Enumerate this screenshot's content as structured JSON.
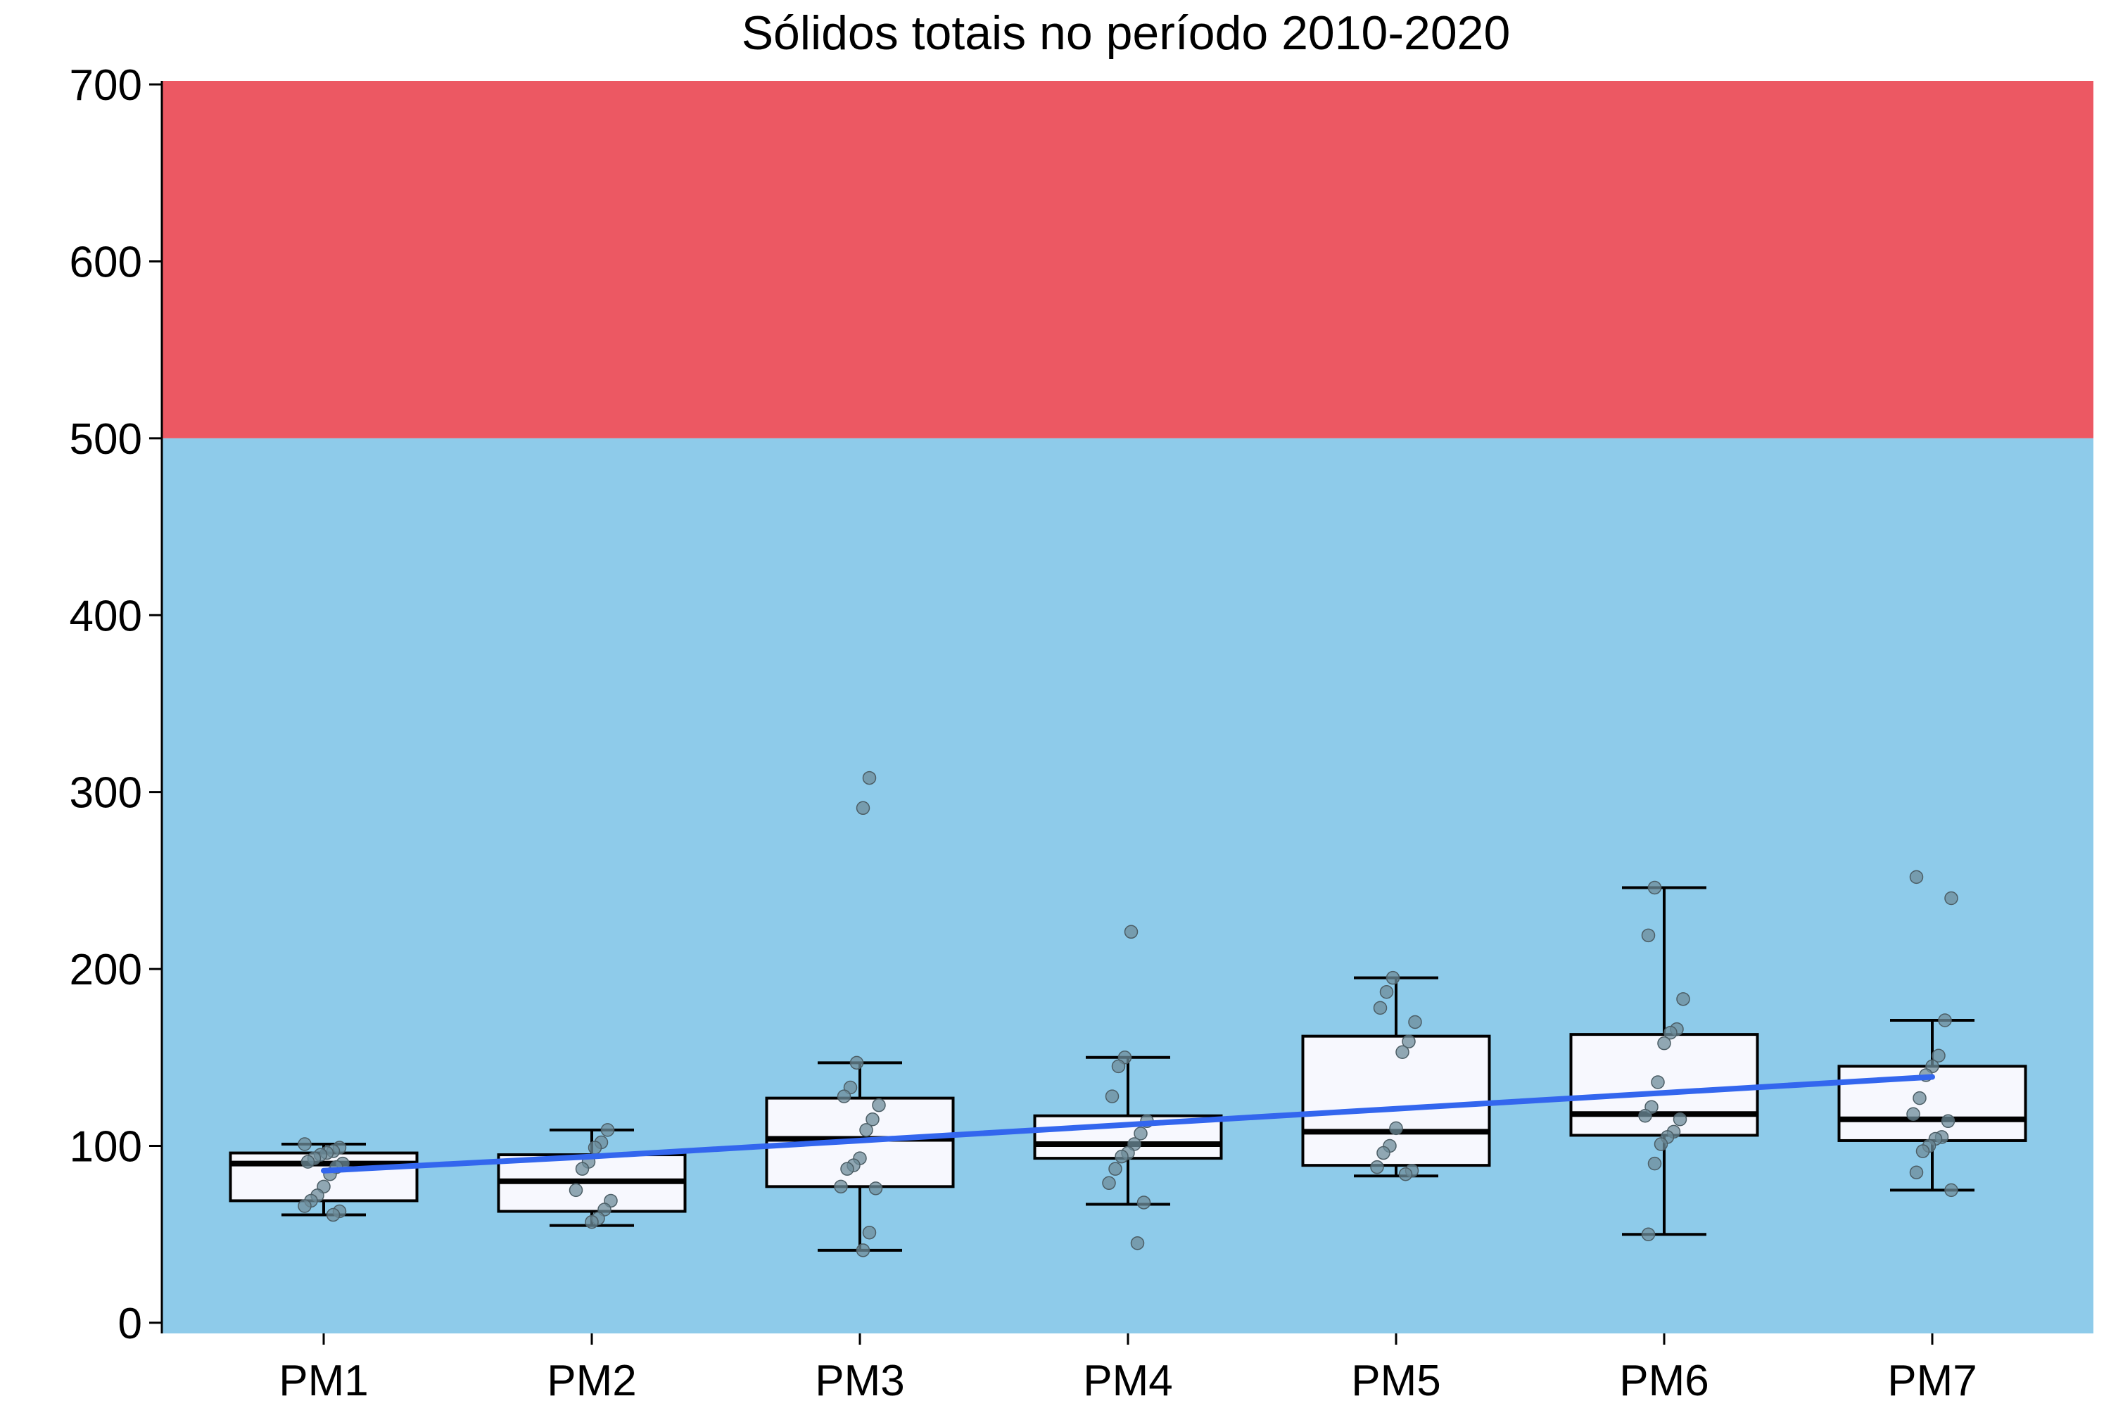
{
  "chart_data": {
    "type": "box",
    "title": "Sólidos totais no período 2010-2020",
    "xlabel": "",
    "ylabel": "",
    "ylim": [
      -6,
      702
    ],
    "yticks": [
      0,
      100,
      200,
      300,
      400,
      500,
      600,
      700
    ],
    "categories": [
      "PM1",
      "PM2",
      "PM3",
      "PM4",
      "PM5",
      "PM6",
      "PM7"
    ],
    "bands": [
      {
        "from": 0,
        "to": 500,
        "color": "#8ECBEA"
      },
      {
        "from": 500,
        "to": 702,
        "color": "#EC5863"
      }
    ],
    "boxes": [
      {
        "category": "PM1",
        "min": 61,
        "q1": 69,
        "median": 90,
        "q3": 96,
        "max": 101
      },
      {
        "category": "PM2",
        "min": 55,
        "q1": 63,
        "median": 80,
        "q3": 95,
        "max": 109
      },
      {
        "category": "PM3",
        "min": 41,
        "q1": 77,
        "median": 104,
        "q3": 127,
        "max": 147
      },
      {
        "category": "PM4",
        "min": 67,
        "q1": 93,
        "median": 101,
        "q3": 117,
        "max": 150
      },
      {
        "category": "PM5",
        "min": 83,
        "q1": 89,
        "median": 108,
        "q3": 162,
        "max": 195
      },
      {
        "category": "PM6",
        "min": 50,
        "q1": 106,
        "median": 118,
        "q3": 163,
        "max": 246
      },
      {
        "category": "PM7",
        "min": 75,
        "q1": 103,
        "median": 115,
        "q3": 145,
        "max": 171
      }
    ],
    "points": [
      {
        "category": "PM1",
        "values": [
          101,
          99,
          97,
          96,
          95,
          93,
          91,
          90,
          88,
          84,
          77,
          72,
          69,
          66,
          63,
          61
        ]
      },
      {
        "category": "PM2",
        "values": [
          109,
          102,
          99,
          91,
          87,
          75,
          69,
          64,
          59,
          57
        ]
      },
      {
        "category": "PM3",
        "values": [
          308,
          291,
          147,
          133,
          128,
          123,
          115,
          109,
          93,
          89,
          87,
          77,
          76,
          51,
          41
        ]
      },
      {
        "category": "PM4",
        "values": [
          221,
          150,
          145,
          128,
          114,
          107,
          101,
          96,
          94,
          87,
          79,
          68,
          45
        ]
      },
      {
        "category": "PM5",
        "values": [
          195,
          187,
          178,
          170,
          159,
          153,
          110,
          100,
          96,
          88,
          86,
          84
        ]
      },
      {
        "category": "PM6",
        "values": [
          246,
          219,
          183,
          166,
          164,
          158,
          136,
          122,
          117,
          115,
          108,
          105,
          101,
          90,
          50
        ]
      },
      {
        "category": "PM7",
        "values": [
          252,
          240,
          171,
          151,
          145,
          140,
          127,
          118,
          114,
          105,
          104,
          100,
          97,
          85,
          75
        ]
      }
    ],
    "trend": {
      "color": "#3366EE",
      "values": [
        86,
        94,
        103,
        112,
        121,
        130,
        139
      ]
    },
    "grid": false,
    "legend": "none",
    "colors": {
      "box_fill": "#F7F8FE",
      "box_stroke": "#000000",
      "point": "#6E8C99"
    }
  }
}
